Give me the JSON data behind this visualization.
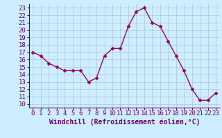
{
  "x": [
    0,
    1,
    2,
    3,
    4,
    5,
    6,
    7,
    8,
    9,
    10,
    11,
    12,
    13,
    14,
    15,
    16,
    17,
    18,
    19,
    20,
    21,
    22,
    23
  ],
  "y": [
    17,
    16.5,
    15.5,
    15,
    14.5,
    14.5,
    14.5,
    13,
    13.5,
    16.5,
    17.5,
    17.5,
    20.5,
    22.5,
    23,
    21,
    20.5,
    18.5,
    16.5,
    14.5,
    12,
    10.5,
    10.5,
    11.5
  ],
  "line_color": "#990066",
  "marker": "D",
  "marker_size": 2.5,
  "line_width": 1.0,
  "bg_color": "#cceeff",
  "grid_color": "#aabbcc",
  "axis_color": "#660066",
  "xlabel": "Windchill (Refroidissement éolien,°C)",
  "xlabel_fontsize": 7,
  "tick_fontsize": 6.5,
  "ylim": [
    9.5,
    23.5
  ],
  "xlim": [
    -0.5,
    23.5
  ],
  "yticks": [
    10,
    11,
    12,
    13,
    14,
    15,
    16,
    17,
    18,
    19,
    20,
    21,
    22,
    23
  ],
  "xticks": [
    0,
    1,
    2,
    3,
    4,
    5,
    6,
    7,
    8,
    9,
    10,
    11,
    12,
    13,
    14,
    15,
    16,
    17,
    18,
    19,
    20,
    21,
    22,
    23
  ]
}
